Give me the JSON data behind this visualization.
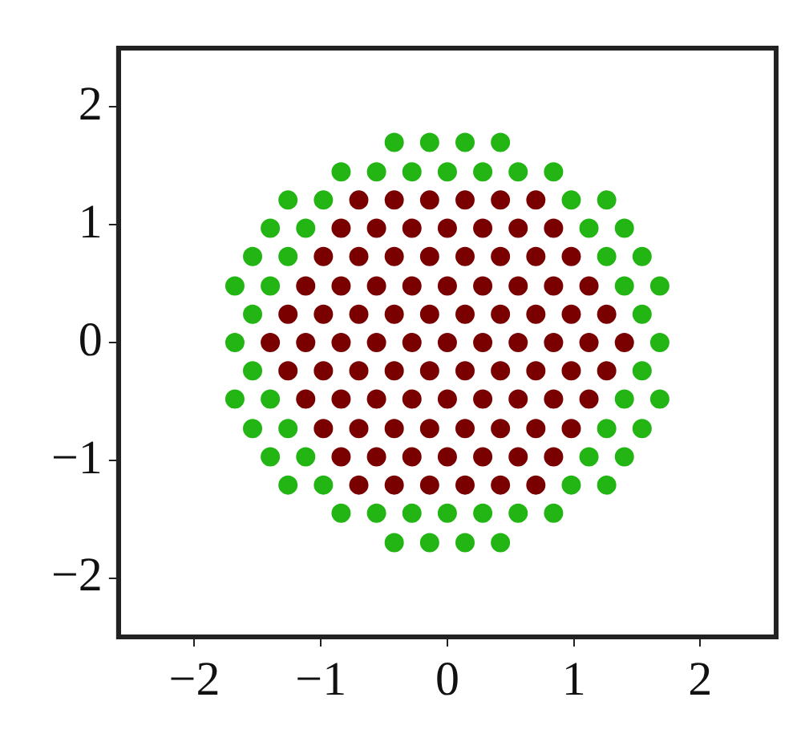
{
  "chart_data": {
    "type": "scatter",
    "marker": "circle",
    "xlim": [
      -2.6,
      2.6
    ],
    "ylim": [
      -2.5,
      2.5
    ],
    "xticks": [
      -2,
      -1,
      0,
      1,
      2
    ],
    "yticks": [
      -2,
      -1,
      0,
      1,
      2
    ],
    "series": [
      {
        "color": "#22b514",
        "x": [
          -0.42,
          -0.14,
          0.14,
          0.42,
          -0.84,
          -0.56,
          -0.28,
          0,
          0.28,
          0.56,
          0.84,
          -1.26,
          -0.98,
          0.98,
          1.26,
          -1.4,
          -1.12,
          1.12,
          1.4,
          -1.54,
          -1.26,
          1.26,
          1.54,
          -1.68,
          -1.4,
          1.4,
          1.68,
          -1.54,
          1.54,
          -1.68,
          1.68,
          -1.54,
          1.54,
          -1.68,
          -1.4,
          1.4,
          1.68,
          -1.54,
          -1.26,
          1.26,
          1.54,
          -1.4,
          -1.12,
          1.12,
          1.4,
          -1.26,
          -0.98,
          0.98,
          1.26,
          -0.84,
          -0.56,
          -0.28,
          0,
          0.28,
          0.56,
          0.84,
          -0.42,
          -0.14,
          0.14,
          0.42
        ],
        "values": [
          1.7,
          1.7,
          1.7,
          1.7,
          1.45,
          1.45,
          1.45,
          1.45,
          1.45,
          1.45,
          1.45,
          1.21,
          1.21,
          1.21,
          1.21,
          0.97,
          0.97,
          0.97,
          0.97,
          0.73,
          0.73,
          0.73,
          0.73,
          0.48,
          0.48,
          0.48,
          0.48,
          0.24,
          0.24,
          0,
          0,
          -0.24,
          -0.24,
          -0.48,
          -0.48,
          -0.48,
          -0.48,
          -0.73,
          -0.73,
          -0.73,
          -0.73,
          -0.97,
          -0.97,
          -0.97,
          -0.97,
          -1.21,
          -1.21,
          -1.21,
          -1.21,
          -1.45,
          -1.45,
          -1.45,
          -1.45,
          -1.45,
          -1.45,
          -1.45,
          -1.7,
          -1.7,
          -1.7,
          -1.7
        ]
      },
      {
        "color": "#7a0000",
        "x": [
          -0.7,
          -0.42,
          -0.14,
          0.14,
          0.42,
          0.7,
          -0.84,
          -0.56,
          -0.28,
          0,
          0.28,
          0.56,
          0.84,
          -0.98,
          -0.7,
          -0.42,
          -0.14,
          0.14,
          0.42,
          0.7,
          0.98,
          -1.12,
          -0.84,
          -0.56,
          -0.28,
          0,
          0.28,
          0.56,
          0.84,
          1.12,
          -1.26,
          -0.98,
          -0.7,
          -0.42,
          -0.14,
          0.14,
          0.42,
          0.7,
          0.98,
          1.26,
          -1.4,
          -1.12,
          -0.84,
          -0.56,
          -0.28,
          0,
          0.28,
          0.56,
          0.84,
          1.12,
          1.4,
          -1.26,
          -0.98,
          -0.7,
          -0.42,
          -0.14,
          0.14,
          0.42,
          0.7,
          0.98,
          1.26,
          -1.12,
          -0.84,
          -0.56,
          -0.28,
          0,
          0.28,
          0.56,
          0.84,
          1.12,
          -0.98,
          -0.7,
          -0.42,
          -0.14,
          0.14,
          0.42,
          0.7,
          0.98,
          -0.84,
          -0.56,
          -0.28,
          0,
          0.28,
          0.56,
          0.84,
          -0.7,
          -0.42,
          -0.14,
          0.14,
          0.42,
          0.7
        ],
        "values": [
          1.21,
          1.21,
          1.21,
          1.21,
          1.21,
          1.21,
          0.97,
          0.97,
          0.97,
          0.97,
          0.97,
          0.97,
          0.97,
          0.73,
          0.73,
          0.73,
          0.73,
          0.73,
          0.73,
          0.73,
          0.73,
          0.48,
          0.48,
          0.48,
          0.48,
          0.48,
          0.48,
          0.48,
          0.48,
          0.48,
          0.24,
          0.24,
          0.24,
          0.24,
          0.24,
          0.24,
          0.24,
          0.24,
          0.24,
          0.24,
          0,
          0,
          0,
          0,
          0,
          0,
          0,
          0,
          0,
          0,
          0,
          -0.24,
          -0.24,
          -0.24,
          -0.24,
          -0.24,
          -0.24,
          -0.24,
          -0.24,
          -0.24,
          -0.24,
          -0.48,
          -0.48,
          -0.48,
          -0.48,
          -0.48,
          -0.48,
          -0.48,
          -0.48,
          -0.48,
          -0.73,
          -0.73,
          -0.73,
          -0.73,
          -0.73,
          -0.73,
          -0.73,
          -0.73,
          -0.97,
          -0.97,
          -0.97,
          -0.97,
          -0.97,
          -0.97,
          -0.97,
          -1.21,
          -1.21,
          -1.21,
          -1.21,
          -1.21,
          -1.21
        ]
      }
    ]
  }
}
